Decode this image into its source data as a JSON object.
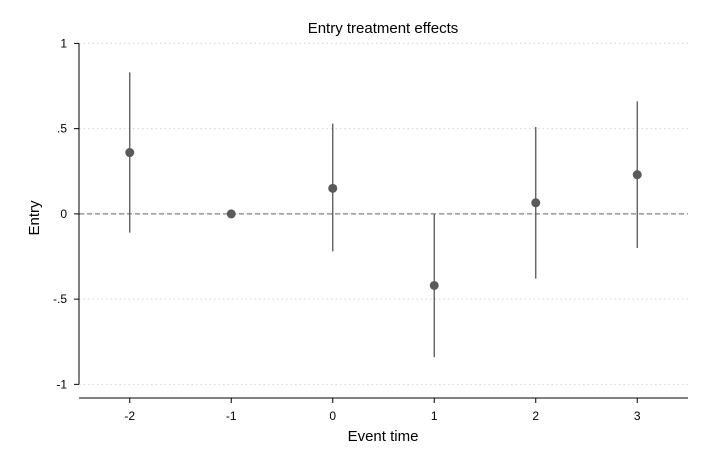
{
  "chart_data": {
    "type": "scatter",
    "title": "Entry treatment effects",
    "xlabel": "Event time",
    "ylabel": "Entry",
    "x_ticks": [
      -2,
      -1,
      0,
      1,
      2,
      3
    ],
    "x_tick_labels": [
      "-2",
      "-1",
      "0",
      "1",
      "2",
      "3"
    ],
    "y_ticks": [
      -1,
      -0.5,
      0,
      0.5,
      1
    ],
    "y_tick_labels": [
      "-1",
      "-.5",
      "0",
      ".5",
      "1"
    ],
    "xlim": [
      -2.5,
      3.5
    ],
    "ylim": [
      -1.08,
      1.02
    ],
    "grid": "horizontal dotted",
    "reference_line": {
      "y": 0,
      "style": "dashed"
    },
    "series": [
      {
        "x": [
          -2,
          -1,
          0,
          1,
          2,
          3
        ],
        "estimate": [
          0.36,
          0.0,
          0.15,
          -0.42,
          0.065,
          0.23
        ],
        "ci_lower": [
          -0.11,
          0.0,
          -0.22,
          -0.84,
          -0.38,
          -0.2
        ],
        "ci_upper": [
          0.83,
          0.0,
          0.53,
          0.0,
          0.51,
          0.66
        ]
      }
    ],
    "colors": {
      "marker": "#5a5a5a",
      "ci": "#555555",
      "grid": "#d4d4d4",
      "axis": "#000000",
      "refline": "#666666"
    }
  }
}
